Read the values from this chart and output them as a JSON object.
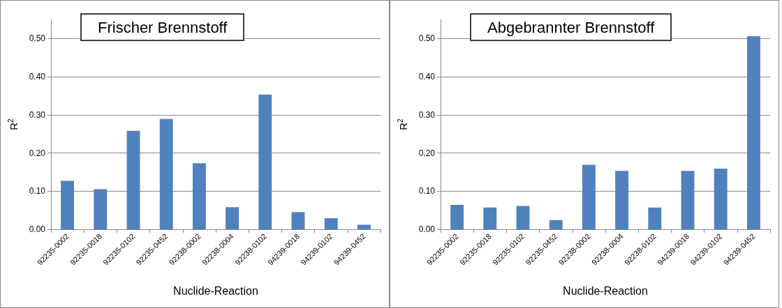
{
  "chart_data": [
    {
      "type": "bar",
      "title": "Frischer Brennstoff",
      "xlabel": "Nuclide-Reaction",
      "ylabel": "R$^{2}$",
      "categories": [
        "92235-0002",
        "92235-0018",
        "92235-0102",
        "92235-0452",
        "92238-0002",
        "92238-0004",
        "92238-0102",
        "94239-0018",
        "94239-0102",
        "94239-0452"
      ],
      "values": [
        0.127,
        0.105,
        0.258,
        0.289,
        0.173,
        0.058,
        0.353,
        0.045,
        0.029,
        0.012
      ],
      "color": "#4f81bd",
      "ylim": [
        0,
        0.55
      ],
      "yticks": [
        {
          "value": 0,
          "label": "0.00"
        },
        {
          "value": 0.1,
          "label": "0.10"
        },
        {
          "value": 0.2,
          "label": "0.20"
        },
        {
          "value": 0.3,
          "label": "0.30"
        },
        {
          "value": 0.4,
          "label": "0.40"
        },
        {
          "value": 0.5,
          "label": "0.50"
        }
      ],
      "grid": "y"
    },
    {
      "type": "bar",
      "title": "Abgebrannter Brennstoff",
      "xlabel": "Nuclide-Reaction",
      "ylabel": "R$^{2}$",
      "categories": [
        "92235-0002",
        "92235-0018",
        "92235-0102",
        "92235-0452",
        "92238-0002",
        "92238-0004",
        "92238-0102",
        "94239-0018",
        "94239-0102",
        "94239-0452"
      ],
      "values": [
        0.064,
        0.057,
        0.061,
        0.024,
        0.169,
        0.153,
        0.057,
        0.153,
        0.159,
        0.506
      ],
      "color": "#4f81bd",
      "ylim": [
        0,
        0.55
      ],
      "yticks": [
        {
          "value": 0,
          "label": "0.00"
        },
        {
          "value": 0.1,
          "label": "0.10"
        },
        {
          "value": 0.2,
          "label": "0.20"
        },
        {
          "value": 0.3,
          "label": "0.30"
        },
        {
          "value": 0.4,
          "label": "0.40"
        },
        {
          "value": 0.5,
          "label": "0.50"
        }
      ],
      "grid": "y"
    }
  ]
}
